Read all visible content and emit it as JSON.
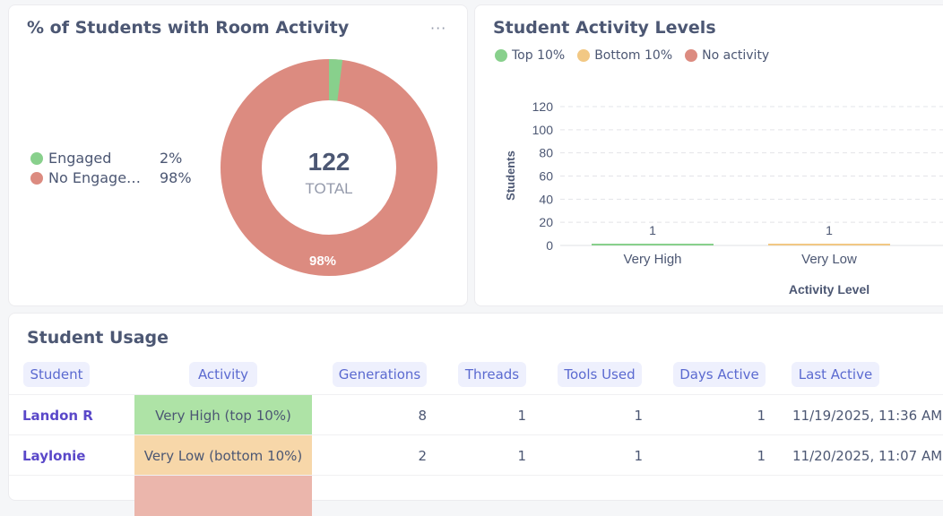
{
  "donut_card": {
    "title": "% of Students with Room Activity",
    "more_label": "···",
    "legend": [
      {
        "label": "Engaged",
        "pct": "2%",
        "color": "#88d08c"
      },
      {
        "label": "No Engage…",
        "pct": "98%",
        "color": "#dc8b80"
      }
    ],
    "center_value": "122",
    "center_label": "TOTAL",
    "slice_label": "98%",
    "engaged_fraction": 0.02
  },
  "bar_card": {
    "title": "Student Activity Levels",
    "legend": [
      {
        "label": "Top 10%",
        "color": "#88d08c"
      },
      {
        "label": "Bottom 10%",
        "color": "#f2c884"
      },
      {
        "label": "No activity",
        "color": "#dc8b80"
      }
    ]
  },
  "chart_data": {
    "type": "bar",
    "categories": [
      "Very High",
      "Very Low"
    ],
    "values": [
      1,
      1
    ],
    "colors": [
      "#88d08c",
      "#f2c884"
    ],
    "data_labels": [
      "1",
      "1"
    ],
    "xlabel": "Activity Level",
    "ylabel": "Students",
    "ylim": [
      0,
      120
    ],
    "yticks": [
      "0",
      "20",
      "40",
      "60",
      "80",
      "100",
      "120"
    ],
    "grid": true
  },
  "table_card": {
    "title": "Student Usage",
    "columns": [
      "Student",
      "Activity",
      "Generations",
      "Threads",
      "Tools Used",
      "Days Active",
      "Last Active"
    ],
    "rows": [
      {
        "student": "Landon R",
        "activity": "Very High (top 10%)",
        "activity_color": "#aee3a6",
        "generations": "8",
        "threads": "1",
        "tools_used": "1",
        "days_active": "1",
        "last_active": "11/19/2025, 11:36 AM"
      },
      {
        "student": "Laylonie",
        "activity": "Very Low (bottom 10%)",
        "activity_color": "#f7d7a9",
        "generations": "2",
        "threads": "1",
        "tools_used": "1",
        "days_active": "1",
        "last_active": "11/20/2025, 11:07 AM"
      },
      {
        "student": "",
        "activity": "",
        "activity_color": "#ebb6ac",
        "generations": "",
        "threads": "",
        "tools_used": "",
        "days_active": "",
        "last_active": ""
      }
    ]
  }
}
